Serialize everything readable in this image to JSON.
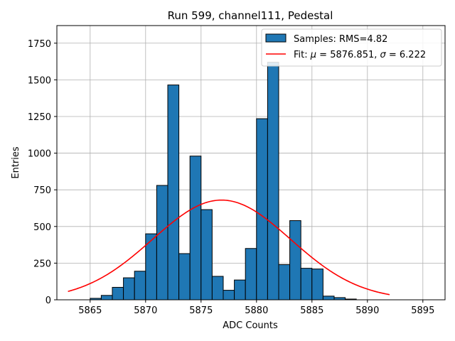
{
  "chart_data": {
    "type": "bar",
    "title": "Run 599, channel111, Pedestal",
    "xlabel": "ADC Counts",
    "ylabel": "Entries",
    "xlim": [
      5862,
      5897
    ],
    "ylim": [
      0,
      1870
    ],
    "xticks": [
      5865,
      5870,
      5875,
      5880,
      5885,
      5890,
      5895
    ],
    "yticks": [
      0,
      250,
      500,
      750,
      1000,
      1250,
      1500,
      1750
    ],
    "grid": true,
    "legend_position": "top-right",
    "histogram": {
      "name": "Samples: RMS=4.82",
      "color": "#1f77b4",
      "bin_start": 5865,
      "bin_width": 1,
      "counts": [
        10,
        30,
        85,
        150,
        195,
        450,
        780,
        1465,
        315,
        980,
        615,
        160,
        65,
        135,
        350,
        1235,
        1620,
        240,
        540,
        215,
        210,
        25,
        15,
        5,
        0,
        0
      ]
    },
    "fit": {
      "name_prefix": "Fit: ",
      "mu_symbol": "μ",
      "mu_text": " = 5876.851, ",
      "sigma_symbol": "σ",
      "sigma_text": " = 6.222",
      "color": "#ff0000",
      "mu": 5876.851,
      "sigma": 6.222,
      "amplitude": 680,
      "x_range": [
        5863,
        5892
      ]
    }
  }
}
